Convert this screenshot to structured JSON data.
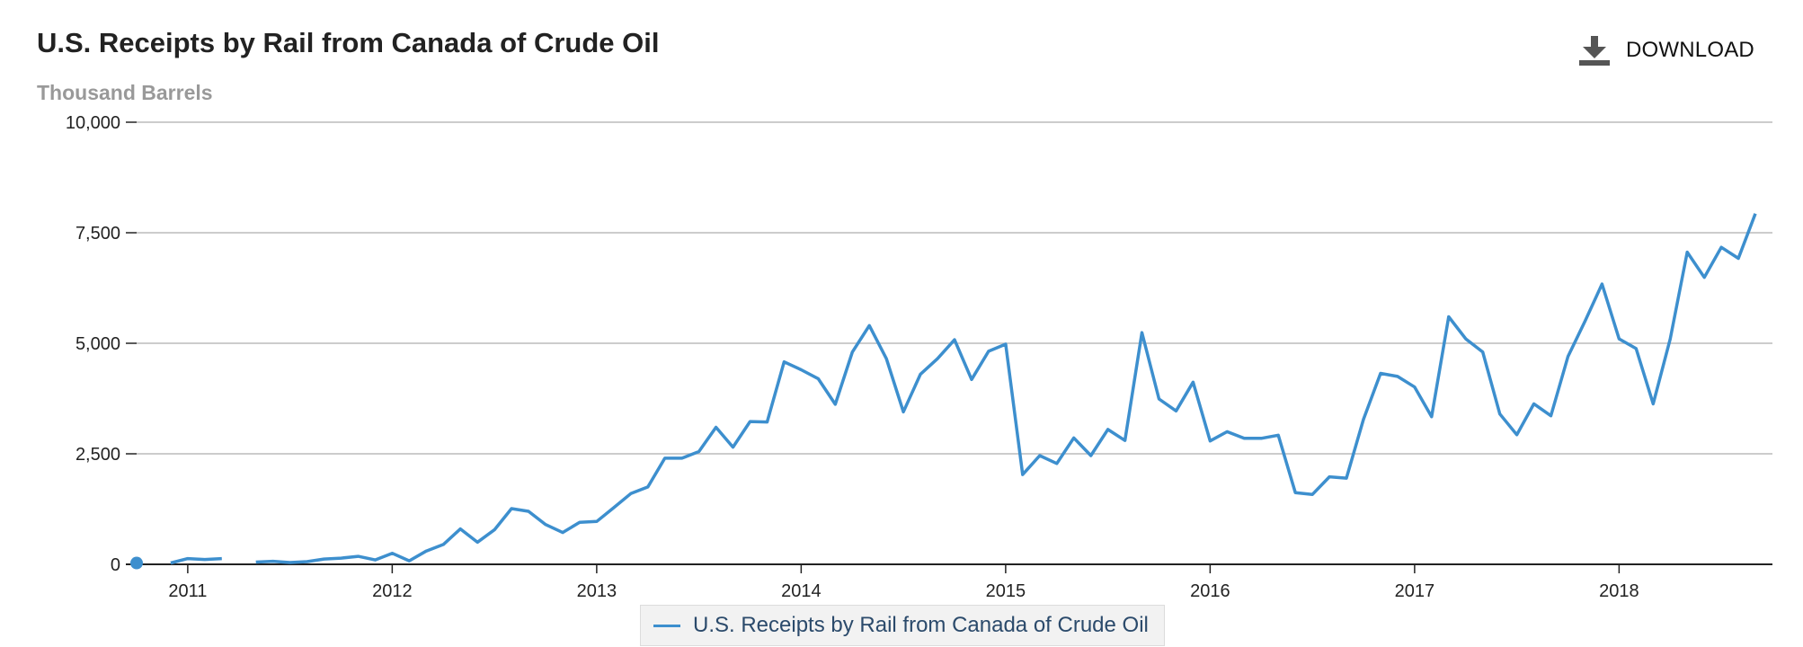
{
  "header": {
    "title": "U.S. Receipts by Rail from Canada of Crude Oil",
    "units": "Thousand Barrels",
    "download_label": "DOWNLOAD"
  },
  "icons": {
    "download": "download-icon"
  },
  "colors": {
    "series": "#3d8fce",
    "grid": "#bbbbbb",
    "axis": "#222222",
    "download_icon": "#555555"
  },
  "chart_data": {
    "type": "line",
    "title": "U.S. Receipts by Rail from Canada of Crude Oil",
    "ylabel": "Thousand Barrels",
    "xlabel": "",
    "ylim": [
      0,
      10000
    ],
    "xlim": [
      "2010-10",
      "2018-10"
    ],
    "grid": true,
    "legend_position": "bottom-center",
    "y_ticks": [
      {
        "value": 0,
        "label": "0"
      },
      {
        "value": 2500,
        "label": "2,500"
      },
      {
        "value": 5000,
        "label": "5,000"
      },
      {
        "value": 7500,
        "label": "7,500"
      },
      {
        "value": 10000,
        "label": "10,000"
      }
    ],
    "x_ticks": [
      "2011",
      "2012",
      "2013",
      "2014",
      "2015",
      "2016",
      "2017",
      "2018"
    ],
    "series": [
      {
        "name": "U.S. Receipts by Rail from Canada of Crude Oil",
        "x": [
          "2010-10",
          "2010-11",
          "2010-12",
          "2011-01",
          "2011-02",
          "2011-03",
          "2011-04",
          "2011-05",
          "2011-06",
          "2011-07",
          "2011-08",
          "2011-09",
          "2011-10",
          "2011-11",
          "2011-12",
          "2012-01",
          "2012-02",
          "2012-03",
          "2012-04",
          "2012-05",
          "2012-06",
          "2012-07",
          "2012-08",
          "2012-09",
          "2012-10",
          "2012-11",
          "2012-12",
          "2013-01",
          "2013-02",
          "2013-03",
          "2013-04",
          "2013-05",
          "2013-06",
          "2013-07",
          "2013-08",
          "2013-09",
          "2013-10",
          "2013-11",
          "2013-12",
          "2014-01",
          "2014-02",
          "2014-03",
          "2014-04",
          "2014-05",
          "2014-06",
          "2014-07",
          "2014-08",
          "2014-09",
          "2014-10",
          "2014-11",
          "2014-12",
          "2015-01",
          "2015-02",
          "2015-03",
          "2015-04",
          "2015-05",
          "2015-06",
          "2015-07",
          "2015-08",
          "2015-09",
          "2015-10",
          "2015-11",
          "2015-12",
          "2016-01",
          "2016-02",
          "2016-03",
          "2016-04",
          "2016-05",
          "2016-06",
          "2016-07",
          "2016-08",
          "2016-09",
          "2016-10",
          "2016-11",
          "2016-12",
          "2017-01",
          "2017-02",
          "2017-03",
          "2017-04",
          "2017-05",
          "2017-06",
          "2017-07",
          "2017-08",
          "2017-09",
          "2017-10",
          "2017-11",
          "2017-12",
          "2018-01",
          "2018-02",
          "2018-03",
          "2018-04",
          "2018-05",
          "2018-06",
          "2018-07",
          "2018-08",
          "2018-09"
        ],
        "values": [
          30,
          null,
          30,
          130,
          110,
          130,
          null,
          50,
          70,
          40,
          60,
          120,
          140,
          180,
          100,
          250,
          80,
          300,
          450,
          800,
          500,
          780,
          1260,
          1200,
          900,
          720,
          950,
          970,
          1280,
          1600,
          1750,
          2400,
          2400,
          2550,
          3100,
          2650,
          3230,
          3220,
          4580,
          4400,
          4200,
          3620,
          4800,
          5400,
          4650,
          3450,
          4300,
          4650,
          5080,
          4180,
          4820,
          4980,
          2030,
          2460,
          2280,
          2860,
          2460,
          3050,
          2800,
          5240,
          3740,
          3470,
          4120,
          2790,
          3000,
          2850,
          2850,
          2920,
          1620,
          1580,
          1980,
          1950,
          3280,
          4320,
          4250,
          4010,
          3340,
          5600,
          5100,
          4800,
          3400,
          2930,
          3630,
          3360,
          4700,
          5500,
          6340,
          5100,
          4880,
          3630,
          5100,
          7060,
          6490,
          7170,
          6920,
          7930
        ]
      }
    ]
  }
}
